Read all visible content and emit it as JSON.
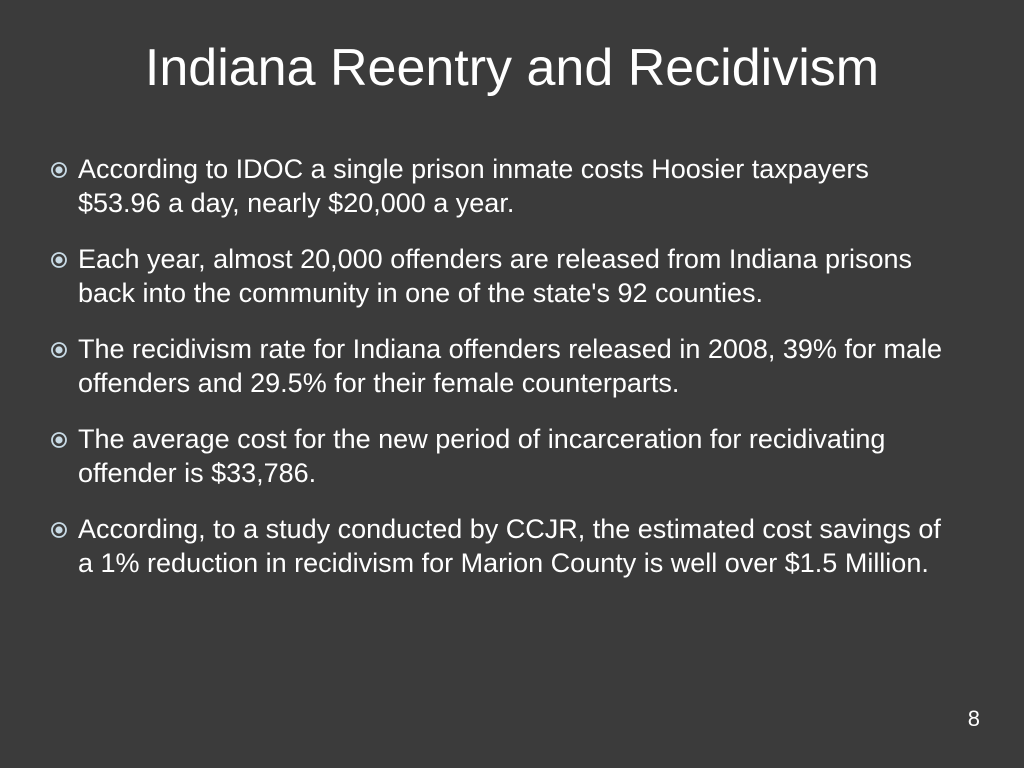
{
  "header": {
    "title": "Indiana Reentry and Recidivism"
  },
  "bullets": [
    "According to IDOC a single prison inmate costs Hoosier taxpayers $53.96 a day, nearly $20,000 a year.",
    "Each year, almost 20,000 offenders are released from Indiana prisons back into the community in one of the state's 92 counties.",
    "The recidivism rate for Indiana offenders released in 2008, 39% for male offenders and 29.5% for their female counterparts.",
    "The average cost for the new period of incarceration for recidivating offender is $33,786.",
    "According, to a study conducted by CCJR, the estimated cost savings of a 1% reduction in recidivism for Marion County is well over $1.5 Million."
  ],
  "footer": {
    "slide_number": "8"
  }
}
